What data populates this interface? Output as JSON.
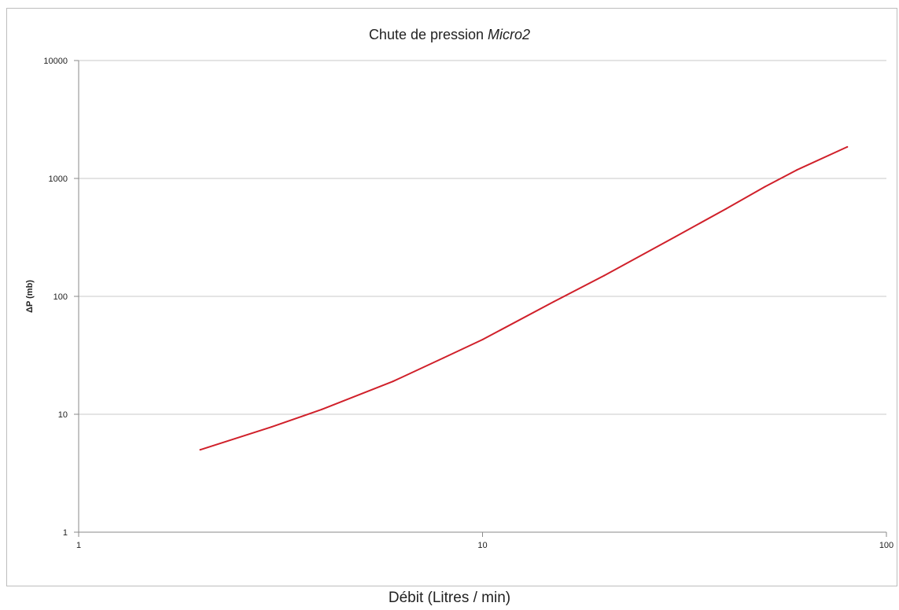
{
  "chart_data": {
    "type": "line",
    "title": "Chute de pression",
    "title_italic": "Micro2",
    "xlabel": "Débit (Litres / min)",
    "ylabel": "ΔP (mb)",
    "x_scale": "log",
    "y_scale": "log",
    "xlim": [
      1,
      100
    ],
    "ylim": [
      1,
      10000
    ],
    "x_ticks": [
      "1",
      "10",
      "100"
    ],
    "y_ticks": [
      "1",
      "10",
      "100",
      "1000",
      "10000"
    ],
    "grid": "horizontal",
    "legend": "none",
    "series": [
      {
        "color": "#d0202a",
        "x": [
          2,
          3,
          4,
          6,
          8,
          10,
          15,
          20,
          30,
          40,
          50,
          60,
          80
        ],
        "y": [
          5,
          7.8,
          11,
          19,
          30,
          43,
          90,
          150,
          320,
          550,
          850,
          1180,
          1850
        ]
      }
    ]
  }
}
